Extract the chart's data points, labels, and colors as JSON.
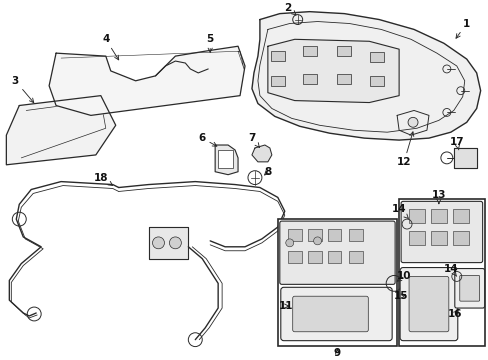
{
  "bg_color": "#ffffff",
  "fig_width": 4.89,
  "fig_height": 3.6,
  "dpi": 100,
  "lc": "#2a2a2a",
  "tc": "#111111",
  "fs": 7.5,
  "fs_small": 6.5
}
